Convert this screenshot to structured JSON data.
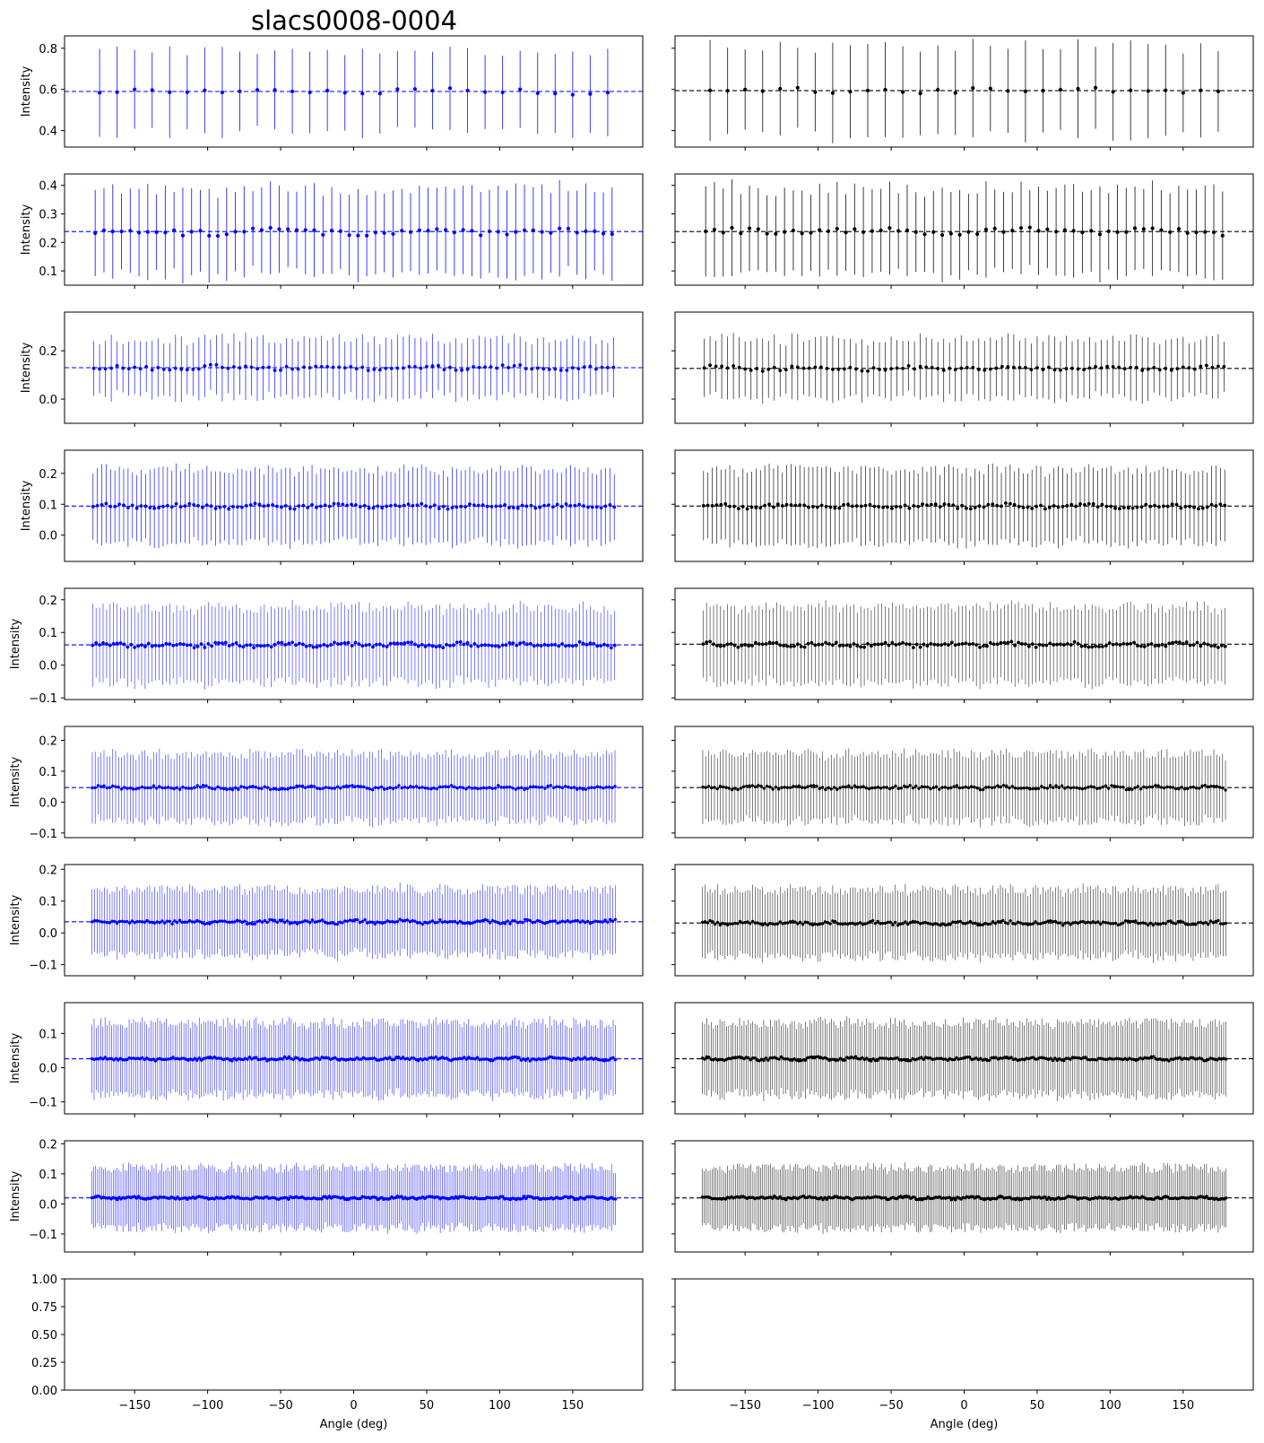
{
  "figure": {
    "title": "slacs0008-0004",
    "xlabel": "Angle (deg)",
    "ylabel": "Intensity"
  },
  "chart_data": {
    "type": "scatter",
    "description_style": "errorbar",
    "title": "slacs0008-0004",
    "xlabel": "Angle (deg)",
    "ylabel": "Intensity",
    "xlim": [
      -198,
      198
    ],
    "xticks": [
      -150,
      -100,
      -50,
      0,
      50,
      100,
      150
    ],
    "columns": [
      {
        "color": "#0000ff"
      },
      {
        "color": "#000000"
      }
    ],
    "rows": [
      {
        "ylim": [
          0.32,
          0.86
        ],
        "yticks": [
          0.4,
          0.6,
          0.8
        ],
        "ytick_labels": [
          "0.4",
          "0.6",
          "0.8"
        ],
        "blue": {
          "n": 30,
          "mean": 0.59,
          "err": 0.2,
          "errjit": 0.03,
          "vjit": 0.012,
          "ref": 0.59
        },
        "black": {
          "n": 30,
          "mean": 0.595,
          "err": 0.22,
          "errjit": 0.03,
          "vjit": 0.012,
          "ref": 0.594
        }
      },
      {
        "ylim": [
          0.05,
          0.44
        ],
        "yticks": [
          0.1,
          0.2,
          0.3,
          0.4
        ],
        "ytick_labels": [
          "0.1",
          "0.2",
          "0.3",
          "0.4"
        ],
        "blue": {
          "n": 60,
          "mean": 0.237,
          "err": 0.15,
          "errjit": 0.02,
          "vjit": 0.01,
          "ref": 0.238
        },
        "black": {
          "n": 60,
          "mean": 0.238,
          "err": 0.15,
          "errjit": 0.02,
          "vjit": 0.01,
          "ref": 0.238
        }
      },
      {
        "ylim": [
          -0.1,
          0.36
        ],
        "yticks": [
          0.0,
          0.2
        ],
        "ytick_labels": [
          "0.0",
          "0.2"
        ],
        "blue": {
          "n": 90,
          "mean": 0.13,
          "err": 0.12,
          "errjit": 0.02,
          "vjit": 0.008,
          "ref": 0.13
        },
        "black": {
          "n": 90,
          "mean": 0.128,
          "err": 0.12,
          "errjit": 0.02,
          "vjit": 0.008,
          "ref": 0.127
        }
      },
      {
        "ylim": [
          -0.085,
          0.275
        ],
        "yticks": [
          0.0,
          0.1,
          0.2
        ],
        "ytick_labels": [
          "0.0",
          "0.1",
          "0.2"
        ],
        "blue": {
          "n": 120,
          "mean": 0.094,
          "err": 0.118,
          "errjit": 0.015,
          "vjit": 0.006,
          "ref": 0.094
        },
        "black": {
          "n": 120,
          "mean": 0.094,
          "err": 0.118,
          "errjit": 0.015,
          "vjit": 0.006,
          "ref": 0.094
        }
      },
      {
        "ylim": [
          -0.105,
          0.235
        ],
        "yticks": [
          -0.1,
          0.0,
          0.1,
          0.2
        ],
        "ytick_labels": [
          "−0.1",
          "0.0",
          "0.1",
          "0.2"
        ],
        "blue": {
          "n": 150,
          "mean": 0.062,
          "err": 0.115,
          "errjit": 0.015,
          "vjit": 0.006,
          "ref": 0.062
        },
        "black": {
          "n": 150,
          "mean": 0.063,
          "err": 0.115,
          "errjit": 0.015,
          "vjit": 0.006,
          "ref": 0.064
        }
      },
      {
        "ylim": [
          -0.115,
          0.245
        ],
        "yticks": [
          -0.1,
          0.0,
          0.1,
          0.2
        ],
        "ytick_labels": [
          "−0.1",
          "0.0",
          "0.1",
          "0.2"
        ],
        "blue": {
          "n": 180,
          "mean": 0.047,
          "err": 0.108,
          "errjit": 0.015,
          "vjit": 0.005,
          "ref": 0.047
        },
        "black": {
          "n": 180,
          "mean": 0.047,
          "err": 0.108,
          "errjit": 0.015,
          "vjit": 0.005,
          "ref": 0.047
        }
      },
      {
        "ylim": [
          -0.135,
          0.215
        ],
        "yticks": [
          -0.1,
          0.0,
          0.1,
          0.2
        ],
        "ytick_labels": [
          "−0.1",
          "0.0",
          "0.1",
          "0.2"
        ],
        "blue": {
          "n": 210,
          "mean": 0.035,
          "err": 0.102,
          "errjit": 0.015,
          "vjit": 0.005,
          "ref": 0.035
        },
        "black": {
          "n": 210,
          "mean": 0.031,
          "err": 0.105,
          "errjit": 0.015,
          "vjit": 0.005,
          "ref": 0.031
        }
      },
      {
        "ylim": [
          -0.135,
          0.19
        ],
        "yticks": [
          -0.1,
          0.0,
          0.1
        ],
        "ytick_labels": [
          "−0.1",
          "0.0",
          "0.1"
        ],
        "blue": {
          "n": 240,
          "mean": 0.026,
          "err": 0.105,
          "errjit": 0.015,
          "vjit": 0.004,
          "ref": 0.026
        },
        "black": {
          "n": 240,
          "mean": 0.026,
          "err": 0.105,
          "errjit": 0.015,
          "vjit": 0.004,
          "ref": 0.026
        }
      },
      {
        "ylim": [
          -0.16,
          0.21
        ],
        "yticks": [
          -0.1,
          0.0,
          0.1,
          0.2
        ],
        "ytick_labels": [
          "−0.1",
          "0.0",
          "0.1",
          "0.2"
        ],
        "blue": {
          "n": 270,
          "mean": 0.02,
          "err": 0.1,
          "errjit": 0.015,
          "vjit": 0.004,
          "ref": 0.02
        },
        "black": {
          "n": 270,
          "mean": 0.02,
          "err": 0.1,
          "errjit": 0.015,
          "vjit": 0.004,
          "ref": 0.02
        }
      },
      {
        "ylim": [
          0.0,
          1.0
        ],
        "yticks": [
          0.0,
          0.25,
          0.5,
          0.75,
          1.0
        ],
        "ytick_labels": [
          "0.00",
          "0.25",
          "0.50",
          "0.75",
          "1.00"
        ],
        "blue": null,
        "black": null
      }
    ]
  }
}
